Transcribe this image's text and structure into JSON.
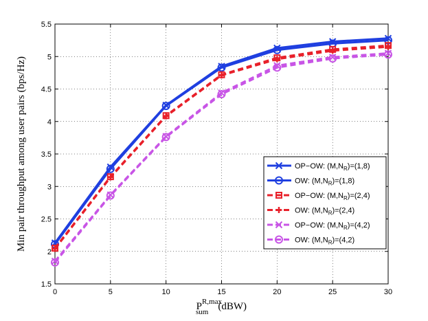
{
  "chart_data": {
    "type": "line",
    "xlabel": {
      "main": "P",
      "sup": "R,max",
      "sub": "sum",
      "unit": "(dBW)"
    },
    "ylabel": "Min pair throughput among user pairs (bps/Hz)",
    "xlim": [
      0,
      30
    ],
    "ylim": [
      1.5,
      5.5
    ],
    "xticks": [
      "0",
      "5",
      "10",
      "15",
      "20",
      "25",
      "30"
    ],
    "yticks": [
      "1.5",
      "2",
      "2.5",
      "3",
      "3.5",
      "4",
      "4.5",
      "5",
      "5.5"
    ],
    "grid": true,
    "legend_position": "right",
    "x": [
      0,
      5,
      10,
      15,
      20,
      25,
      30
    ],
    "series": [
      {
        "name": "OP−OW: (M,N",
        "sub": "R",
        "tail": ")=(1,8)",
        "values": [
          2.13,
          3.3,
          4.25,
          4.85,
          5.13,
          5.23,
          5.28
        ],
        "color": "#1f3fe0",
        "dash": "solid",
        "marker": "x"
      },
      {
        "name": "OW: (M,N",
        "sub": "R",
        "tail": ")=(1,8)",
        "values": [
          2.11,
          3.27,
          4.24,
          4.83,
          5.1,
          5.2,
          5.25
        ],
        "color": "#1f3fe0",
        "dash": "solid",
        "marker": "circle"
      },
      {
        "name": "OP−OW: (M,N",
        "sub": "R",
        "tail": ")=(2,4)",
        "values": [
          2.05,
          3.15,
          4.09,
          4.72,
          4.98,
          5.11,
          5.17
        ],
        "color": "#e8202a",
        "dash": "dashed",
        "marker": "square"
      },
      {
        "name": "OW: (M,N",
        "sub": "R",
        "tail": ")=(2,4)",
        "values": [
          2.04,
          3.14,
          4.08,
          4.71,
          4.96,
          5.09,
          5.15
        ],
        "color": "#e8202a",
        "dash": "dashed",
        "marker": "plus"
      },
      {
        "name": "OP−OW: (M,N",
        "sub": "R",
        "tail": ")=(4,2)",
        "values": [
          1.85,
          2.87,
          3.77,
          4.44,
          4.86,
          4.99,
          5.05
        ],
        "color": "#c855e6",
        "dash": "dashed",
        "marker": "x"
      },
      {
        "name": "OW: (M,N",
        "sub": "R",
        "tail": ")=(4,2)",
        "values": [
          1.83,
          2.86,
          3.76,
          4.42,
          4.83,
          4.97,
          5.03
        ],
        "color": "#c855e6",
        "dash": "dashed",
        "marker": "circle"
      }
    ]
  }
}
